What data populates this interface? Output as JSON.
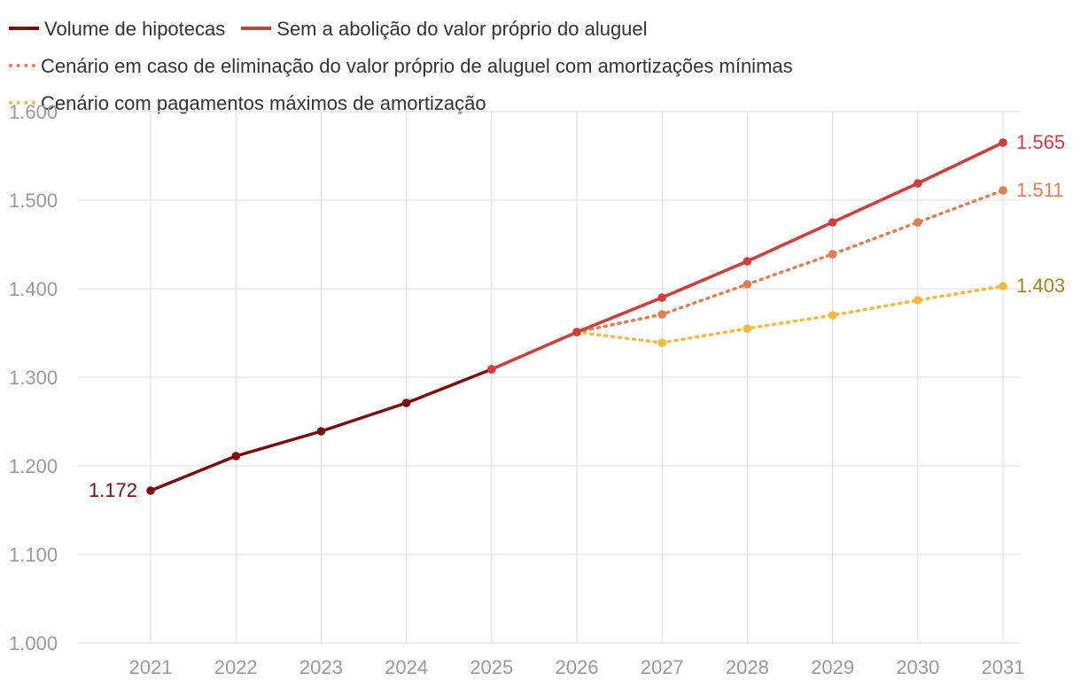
{
  "chart_data": {
    "type": "line",
    "title": "",
    "xlabel": "",
    "ylabel": "",
    "x": [
      2021,
      2022,
      2023,
      2024,
      2025,
      2026,
      2027,
      2028,
      2029,
      2030,
      2031
    ],
    "x_ticks": [
      "2021",
      "2022",
      "2023",
      "2024",
      "2025",
      "2026",
      "2027",
      "2028",
      "2029",
      "2030",
      "2031"
    ],
    "y_ticks": [
      "1.000",
      "1.100",
      "1.200",
      "1.300",
      "1.400",
      "1.500",
      "1.600"
    ],
    "ylim": [
      1000,
      1600
    ],
    "grid": true,
    "legend_position": "top",
    "series": [
      {
        "name": "Volume de hipotecas",
        "color": "#7a0e0e",
        "style": "solid",
        "x": [
          2021,
          2022,
          2023,
          2024,
          2025
        ],
        "values": [
          1172,
          1211,
          1239,
          1271,
          1309
        ],
        "start_label": "1.172"
      },
      {
        "name": "Sem a abolição do valor próprio do aluguel",
        "color": "#d03d3d",
        "style": "solid",
        "x": [
          2025,
          2026,
          2027,
          2028,
          2029,
          2030,
          2031
        ],
        "values": [
          1309,
          1351,
          1390,
          1431,
          1475,
          1519,
          1565
        ],
        "end_label": "1.565"
      },
      {
        "name": "Cenário em caso de eliminação do valor próprio de aluguel com amortizações mínimas",
        "color": "#e07e52",
        "style": "dotted",
        "x": [
          2026,
          2027,
          2028,
          2029,
          2030,
          2031
        ],
        "values": [
          1351,
          1371,
          1405,
          1439,
          1475,
          1511
        ],
        "end_label": "1.511"
      },
      {
        "name": "Cenário com pagamentos máximos de amortização",
        "color": "#f5b942",
        "label_color": "#a8821c",
        "style": "dotted",
        "x": [
          2026,
          2027,
          2028,
          2029,
          2030,
          2031
        ],
        "values": [
          1351,
          1339,
          1355,
          1370,
          1387,
          1403
        ],
        "end_label": "1.403"
      }
    ]
  }
}
